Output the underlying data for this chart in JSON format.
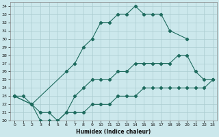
{
  "title": "",
  "xlabel": "Humidex (Indice chaleur)",
  "xlim": [
    -0.5,
    23.5
  ],
  "ylim": [
    20,
    34.5
  ],
  "xticks": [
    0,
    1,
    2,
    3,
    4,
    5,
    6,
    7,
    8,
    9,
    10,
    11,
    12,
    13,
    14,
    15,
    16,
    17,
    18,
    19,
    20,
    21,
    22,
    23
  ],
  "yticks": [
    20,
    21,
    22,
    23,
    24,
    25,
    26,
    27,
    28,
    29,
    30,
    31,
    32,
    33,
    34
  ],
  "bg_color": "#cce8ec",
  "line_color": "#1e6b5e",
  "grid_color": "#aaccd0",
  "line1_x": [
    0,
    1,
    2,
    6,
    7,
    8,
    9,
    10,
    11,
    12,
    13,
    14,
    15,
    16,
    17,
    18,
    20
  ],
  "line1_y": [
    23,
    23,
    22,
    26,
    27,
    29,
    30,
    32,
    32,
    33,
    33,
    34,
    33,
    33,
    33,
    31,
    30
  ],
  "line2_x": [
    0,
    2,
    3,
    4,
    5,
    6,
    7,
    8,
    9,
    10,
    11,
    12,
    13,
    14,
    15,
    16,
    17,
    18,
    19,
    20,
    21,
    22,
    23
  ],
  "line2_y": [
    23,
    22,
    20,
    20,
    20,
    21,
    23,
    24,
    25,
    25,
    25,
    26,
    26,
    27,
    27,
    27,
    27,
    27,
    28,
    28,
    26,
    25,
    25
  ],
  "line3_x": [
    0,
    2,
    3,
    4,
    5,
    6,
    7,
    8,
    9,
    10,
    11,
    12,
    13,
    14,
    15,
    16,
    17,
    18,
    19,
    20,
    21,
    22,
    23
  ],
  "line3_y": [
    23,
    22,
    21,
    21,
    20,
    21,
    21,
    21,
    22,
    22,
    22,
    23,
    23,
    23,
    24,
    24,
    24,
    24,
    24,
    24,
    24,
    24,
    25
  ]
}
